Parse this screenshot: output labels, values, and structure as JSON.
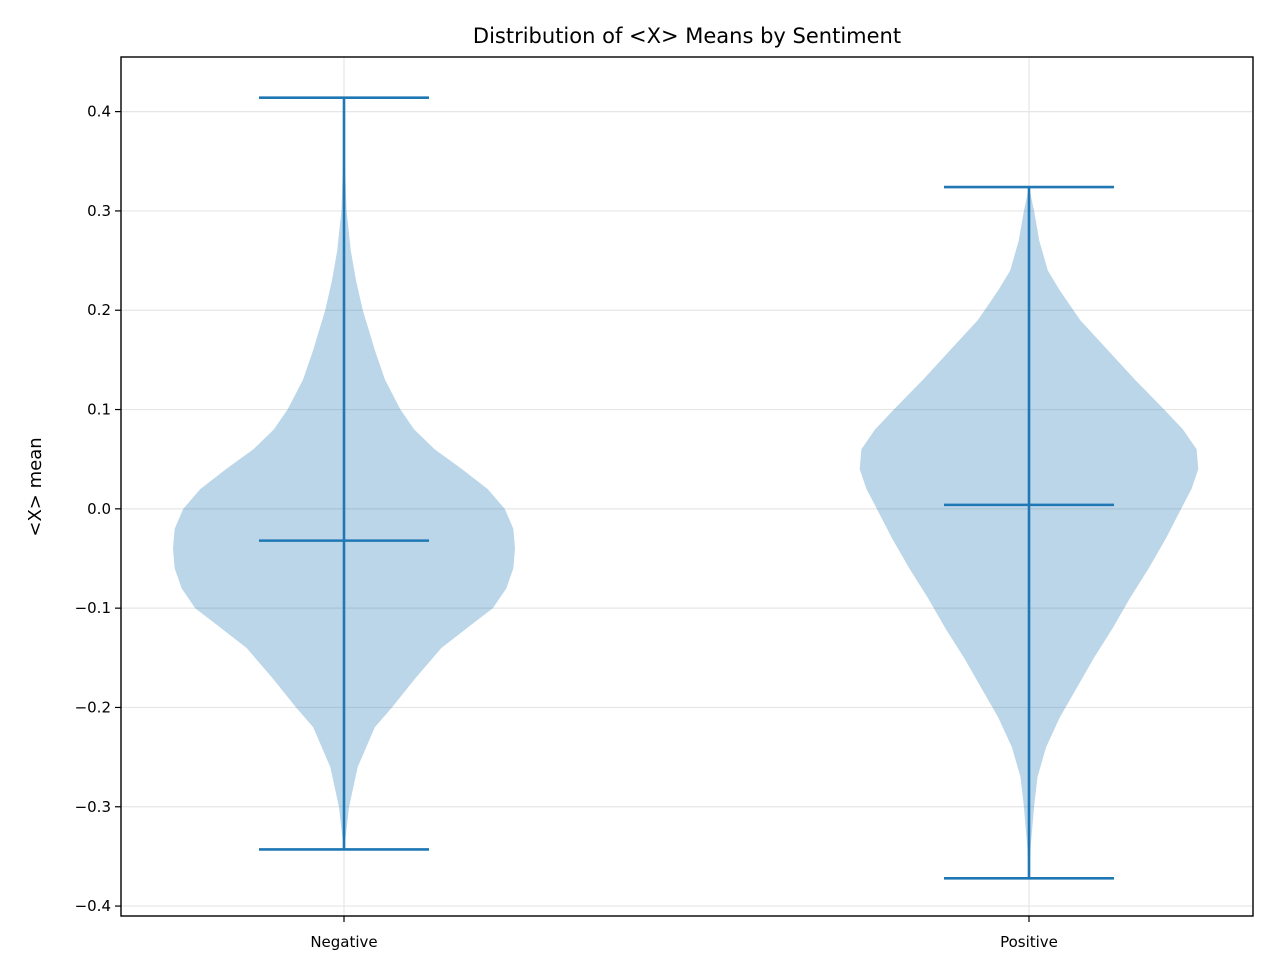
{
  "chart_data": {
    "type": "violin",
    "title": "Distribution of <X> Means by Sentiment",
    "xlabel": "",
    "ylabel": "<X> mean",
    "categories": [
      "Negative",
      "Positive"
    ],
    "ylim": [
      -0.41,
      0.455
    ],
    "yticks": [
      -0.4,
      -0.3,
      -0.2,
      -0.1,
      0.0,
      0.1,
      0.2,
      0.3,
      0.4
    ],
    "ytick_labels": [
      "−0.4",
      "−0.3",
      "−0.2",
      "−0.1",
      "0.0",
      "0.1",
      "0.2",
      "0.3",
      "0.4"
    ],
    "grid": true,
    "colors": {
      "fill": "#1f77b4",
      "fill_opacity": 0.3,
      "lines": "#1f77b4"
    },
    "series": [
      {
        "category": "Negative",
        "min": -0.343,
        "max": 0.414,
        "median": -0.032,
        "density": [
          [
            -0.343,
            0.0
          ],
          [
            -0.33,
            0.01
          ],
          [
            -0.3,
            0.03
          ],
          [
            -0.26,
            0.08
          ],
          [
            -0.22,
            0.18
          ],
          [
            -0.2,
            0.28
          ],
          [
            -0.17,
            0.42
          ],
          [
            -0.14,
            0.57
          ],
          [
            -0.12,
            0.72
          ],
          [
            -0.1,
            0.87
          ],
          [
            -0.08,
            0.95
          ],
          [
            -0.06,
            0.99
          ],
          [
            -0.04,
            1.0
          ],
          [
            -0.02,
            0.99
          ],
          [
            0.0,
            0.94
          ],
          [
            0.02,
            0.84
          ],
          [
            0.04,
            0.69
          ],
          [
            0.06,
            0.53
          ],
          [
            0.08,
            0.41
          ],
          [
            0.1,
            0.33
          ],
          [
            0.13,
            0.24
          ],
          [
            0.16,
            0.18
          ],
          [
            0.2,
            0.11
          ],
          [
            0.23,
            0.07
          ],
          [
            0.26,
            0.04
          ],
          [
            0.3,
            0.015
          ],
          [
            0.35,
            0.005
          ],
          [
            0.414,
            0.0
          ]
        ]
      },
      {
        "category": "Positive",
        "min": -0.372,
        "max": 0.324,
        "median": 0.004,
        "density": [
          [
            -0.372,
            0.0
          ],
          [
            -0.34,
            0.01
          ],
          [
            -0.3,
            0.03
          ],
          [
            -0.27,
            0.05
          ],
          [
            -0.24,
            0.1
          ],
          [
            -0.21,
            0.18
          ],
          [
            -0.18,
            0.28
          ],
          [
            -0.15,
            0.38
          ],
          [
            -0.12,
            0.49
          ],
          [
            -0.09,
            0.59
          ],
          [
            -0.06,
            0.7
          ],
          [
            -0.03,
            0.8
          ],
          [
            0.0,
            0.89
          ],
          [
            0.02,
            0.95
          ],
          [
            0.04,
            0.99
          ],
          [
            0.06,
            0.98
          ],
          [
            0.08,
            0.9
          ],
          [
            0.1,
            0.79
          ],
          [
            0.13,
            0.62
          ],
          [
            0.16,
            0.46
          ],
          [
            0.19,
            0.3
          ],
          [
            0.22,
            0.18
          ],
          [
            0.24,
            0.11
          ],
          [
            0.27,
            0.06
          ],
          [
            0.3,
            0.03
          ],
          [
            0.324,
            0.0
          ]
        ]
      }
    ]
  }
}
